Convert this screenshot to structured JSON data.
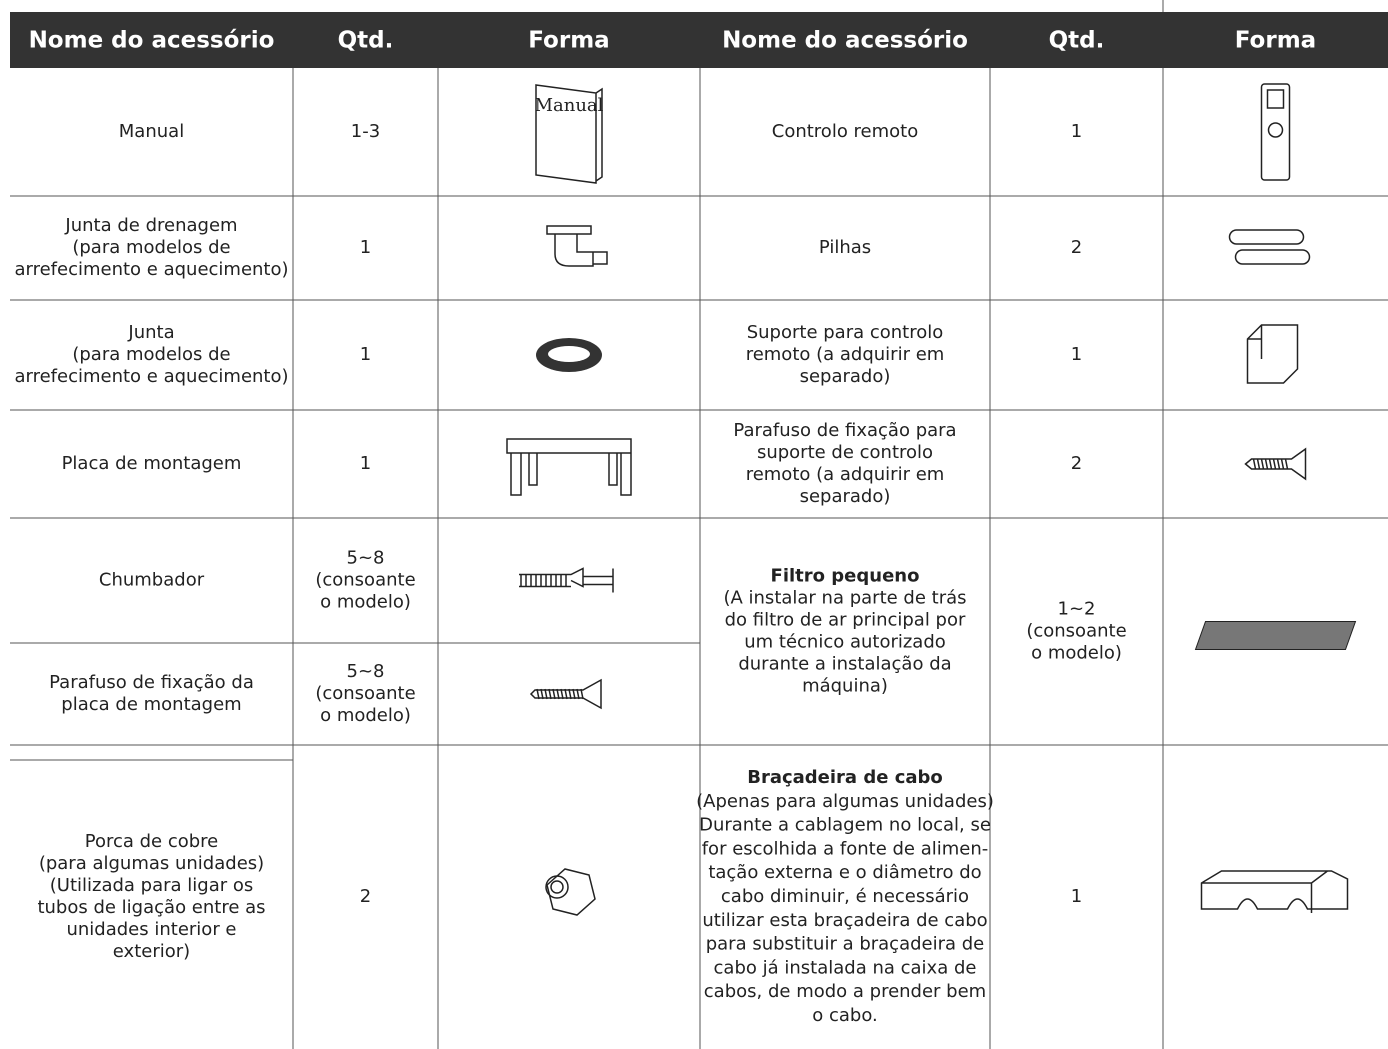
{
  "table": {
    "header": [
      "Nome do acessório",
      "Qtd.",
      "Forma",
      "Nome do acessório",
      "Qtd.",
      "Forma"
    ],
    "left_rows": [
      {
        "name": [
          "Manual"
        ],
        "qty": [
          "1-3"
        ],
        "icon_text": "Manual"
      },
      {
        "name": [
          "Junta de drenagem",
          "(para modelos de",
          "arrefecimento e aquecimento)"
        ],
        "qty": [
          "1"
        ]
      },
      {
        "name": [
          "Junta",
          "(para modelos de",
          "arrefecimento e aquecimento)"
        ],
        "qty": [
          "1"
        ]
      },
      {
        "name": [
          "Placa de montagem"
        ],
        "qty": [
          "1"
        ]
      },
      {
        "name": [
          "Chumbador"
        ],
        "qty": [
          "5~8",
          "(consoante",
          "o modelo)"
        ]
      },
      {
        "name": [
          "Parafuso de fixação da",
          "placa de montagem"
        ],
        "qty": [
          "5~8",
          "(consoante",
          "o modelo)"
        ]
      },
      {
        "name": [
          "Porca de cobre",
          "(para algumas unidades)",
          "(Utilizada para ligar os",
          "tubos de ligação entre as",
          "unidades interior e",
          "exterior)"
        ],
        "qty": [
          "2"
        ]
      }
    ],
    "right_rows": [
      {
        "name": [
          "Controlo remoto"
        ],
        "qty": [
          "1"
        ]
      },
      {
        "name": [
          "Pilhas"
        ],
        "qty": [
          "2"
        ]
      },
      {
        "name": [
          "Suporte para controlo",
          "remoto (a adquirir em",
          "separado)"
        ],
        "qty": [
          "1"
        ]
      },
      {
        "name": [
          "Parafuso de fixação para",
          "suporte de controlo",
          "remoto (a adquirir em",
          "separado)"
        ],
        "qty": [
          "2"
        ]
      },
      {
        "title": "Filtro pequeno",
        "name": [
          "(A instalar na parte de trás",
          "do filtro de ar principal por",
          "um técnico autorizado",
          "durante a instalação da",
          "máquina)"
        ],
        "qty": [
          "1~2",
          "(consoante",
          "o modelo)"
        ]
      },
      {
        "title": "Braçadeira de cabo",
        "name": [
          "(Apenas para algumas unidades)",
          "Durante a cablagem no local, se",
          "for escolhida a fonte de alimen-",
          "tação externa e o diâmetro do",
          "cabo diminuir, é necessário",
          "utilizar esta braçadeira de cabo",
          "para substituir a braçadeira de",
          "cabo já instalada na caixa de",
          "cabos, de modo a prender bem",
          "o cabo."
        ],
        "qty": [
          "1"
        ]
      }
    ]
  }
}
